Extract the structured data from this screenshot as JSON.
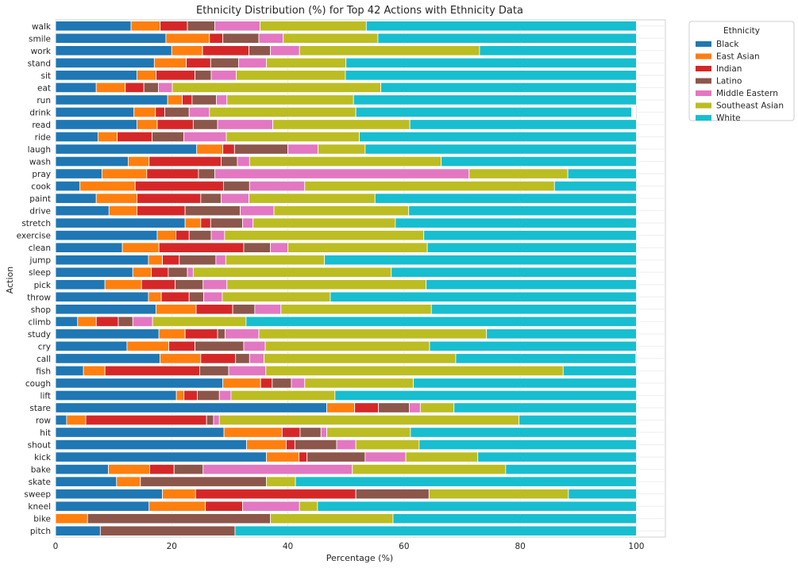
{
  "chart_data": {
    "type": "bar",
    "orientation": "horizontal",
    "stacked": true,
    "title": "Ethnicity Distribution (%) for Top 42 Actions with Ethnicity Data",
    "xlabel": "Percentage (%)",
    "ylabel": "Action",
    "xlim": [
      0,
      105
    ],
    "xticks": [
      "0",
      "20",
      "40",
      "60",
      "80",
      "100"
    ],
    "grid": true,
    "legend": {
      "title": "Ethnicity",
      "placement": "outside-top-right"
    },
    "categories": [
      "walk",
      "smile",
      "work",
      "stand",
      "sit",
      "eat",
      "run",
      "drink",
      "read",
      "ride",
      "laugh",
      "wash",
      "pray",
      "cook",
      "paint",
      "drive",
      "stretch",
      "exercise",
      "clean",
      "jump",
      "sleep",
      "pick",
      "throw",
      "shop",
      "climb",
      "study",
      "cry",
      "call",
      "fish",
      "cough",
      "lift",
      "stare",
      "row",
      "hit",
      "shout",
      "kick",
      "bake",
      "skate",
      "sweep",
      "kneel",
      "bike",
      "pitch"
    ],
    "series": [
      {
        "name": "Black",
        "color": "#1f77b4",
        "values": [
          13,
          19,
          20,
          17,
          14,
          7,
          19.3,
          13.5,
          14,
          7.3,
          24.3,
          12.5,
          8,
          4.2,
          7,
          9.2,
          22.3,
          17.5,
          11.5,
          16,
          13.3,
          8.5,
          16,
          17.3,
          3.8,
          17.8,
          12.3,
          18,
          4.8,
          28.8,
          20.8,
          46.7,
          1.9,
          29,
          32.9,
          36.3,
          9.1,
          10.5,
          18.4,
          16.1,
          0,
          7.7
        ]
      },
      {
        "name": "East Asian",
        "color": "#ff7f0e",
        "values": [
          5,
          7.5,
          5.3,
          5.5,
          3.3,
          5,
          2.5,
          3.7,
          3.5,
          3.3,
          4.5,
          3.6,
          7.7,
          9.5,
          7,
          4.8,
          2.7,
          3.2,
          6.3,
          2.4,
          3.2,
          6.3,
          2.2,
          6.9,
          3.2,
          4.5,
          7.2,
          7,
          3.7,
          6.5,
          1.3,
          4.8,
          3.3,
          10,
          6.8,
          5.6,
          7.1,
          4.1,
          5.7,
          9.7,
          5.5,
          0
        ]
      },
      {
        "name": "Indian",
        "color": "#d62728",
        "values": [
          4.7,
          2.3,
          8,
          4.2,
          6.7,
          3.2,
          1.7,
          1.6,
          6.2,
          6,
          2,
          12.4,
          8.9,
          15.2,
          11,
          8.3,
          1.7,
          2.3,
          14.6,
          2.9,
          2.9,
          5.8,
          4.8,
          6.3,
          3.8,
          5.6,
          4.5,
          6,
          16.3,
          2,
          2.3,
          4.1,
          20.8,
          3.1,
          1.5,
          1.4,
          4.2,
          0,
          27.6,
          6.4,
          0,
          0
        ]
      },
      {
        "name": "Latino",
        "color": "#8c564b",
        "values": [
          4.7,
          6.2,
          3.7,
          4.8,
          2.8,
          2.5,
          4.2,
          4.2,
          4.2,
          5.5,
          9.2,
          2.8,
          2.8,
          4.5,
          3.5,
          9.5,
          5.5,
          3.8,
          4.6,
          6.3,
          3.3,
          4.8,
          2.5,
          3.8,
          2.5,
          1.3,
          8.4,
          2.4,
          5,
          3.3,
          3.8,
          5.3,
          1.2,
          3.6,
          7.2,
          10,
          5,
          21.7,
          12.6,
          0,
          31.5,
          23.2
        ]
      },
      {
        "name": "Middle Eastern",
        "color": "#e377c2",
        "values": [
          7.8,
          4.2,
          5,
          4.8,
          4.3,
          2.4,
          1.8,
          3.5,
          9.5,
          7.3,
          5.2,
          2.1,
          43.8,
          9.5,
          4.8,
          5.8,
          1.8,
          2.3,
          3,
          1.7,
          1,
          4.1,
          3.2,
          4.5,
          3.4,
          5.8,
          3.7,
          2.5,
          6.4,
          2.3,
          2,
          1.9,
          1,
          1,
          3.3,
          7,
          25.7,
          0,
          0,
          9.8,
          0,
          0
        ]
      },
      {
        "name": "Southeast Asian",
        "color": "#bcbd22",
        "values": [
          18.3,
          16.3,
          31,
          13.7,
          18.8,
          35.9,
          21.8,
          25.2,
          23.6,
          22.9,
          8.1,
          33,
          17,
          43,
          21.7,
          23.2,
          24.5,
          34.3,
          24,
          17,
          34.1,
          34.3,
          18.6,
          25.9,
          16.1,
          39.2,
          28.3,
          33,
          51.2,
          18.7,
          17.9,
          5.8,
          51.6,
          14.4,
          10.9,
          12.4,
          26.4,
          5,
          24,
          3.1,
          21.1,
          0
        ]
      },
      {
        "name": "White",
        "color": "#17becf",
        "values": [
          46.5,
          44.5,
          27,
          50,
          50.1,
          44,
          48.7,
          47.5,
          39,
          47.7,
          46.7,
          33.6,
          11.8,
          14.1,
          45,
          39.2,
          41.5,
          36.6,
          36,
          53.7,
          42.2,
          36.2,
          52.7,
          35.3,
          67.2,
          25.8,
          35.6,
          31,
          12.6,
          38.4,
          51.9,
          31.4,
          20.2,
          38.9,
          37.4,
          27.3,
          22.5,
          58.7,
          11.7,
          54.9,
          41.9,
          69.1
        ]
      }
    ]
  }
}
